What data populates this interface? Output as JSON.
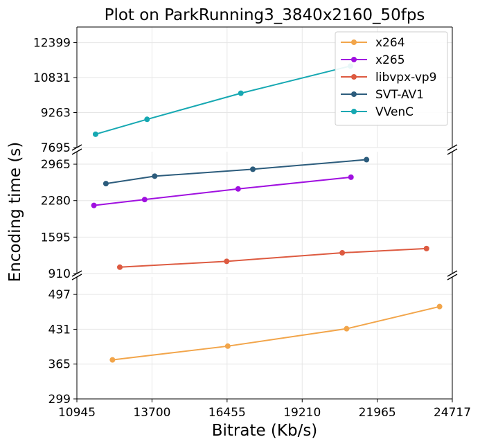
{
  "chart_data": {
    "type": "line",
    "title": "Plot on ParkRunning3_3840x2160_50fps",
    "xlabel": "Bitrate (Kb/s)",
    "ylabel": "Encoding time (s)",
    "xlim": [
      10945,
      24717
    ],
    "x_ticks": [
      "10945",
      "13700",
      "16455",
      "19210",
      "21965",
      "24717"
    ],
    "broken_y_axis": true,
    "panels": [
      {
        "ylim": [
          7695,
          13100
        ],
        "y_ticks": [
          "7695",
          "9263",
          "10831",
          "12399"
        ]
      },
      {
        "ylim": [
          910,
          3200
        ],
        "y_ticks": [
          "910",
          "1595",
          "2280",
          "2965"
        ]
      },
      {
        "ylim": [
          299,
          530
        ],
        "y_ticks": [
          "299",
          "365",
          "431",
          "497"
        ]
      }
    ],
    "grid": true,
    "legend_position": "top-right",
    "series": [
      {
        "name": "x264",
        "color": "#f2a54a",
        "panel": 2,
        "points": [
          [
            12250,
            373
          ],
          [
            16480,
            399
          ],
          [
            20840,
            432
          ],
          [
            24250,
            474
          ]
        ]
      },
      {
        "name": "x265",
        "color": "#a010e0",
        "panel": 1,
        "points": [
          [
            11570,
            2190
          ],
          [
            13430,
            2300
          ],
          [
            16860,
            2500
          ],
          [
            21000,
            2720
          ]
        ]
      },
      {
        "name": "libvpx-vp9",
        "color": "#dd5a40",
        "panel": 1,
        "points": [
          [
            12520,
            1030
          ],
          [
            16440,
            1140
          ],
          [
            20680,
            1300
          ],
          [
            23770,
            1380
          ]
        ]
      },
      {
        "name": "SVT-AV1",
        "color": "#2c5c7c",
        "panel": 1,
        "points": [
          [
            12010,
            2600
          ],
          [
            13800,
            2740
          ],
          [
            17400,
            2870
          ],
          [
            21570,
            3050
          ]
        ]
      },
      {
        "name": "VVenC",
        "color": "#16a8b2",
        "panel": 0,
        "points": [
          [
            11630,
            8290
          ],
          [
            13520,
            8960
          ],
          [
            16960,
            10130
          ],
          [
            20980,
            11350
          ]
        ]
      }
    ]
  }
}
